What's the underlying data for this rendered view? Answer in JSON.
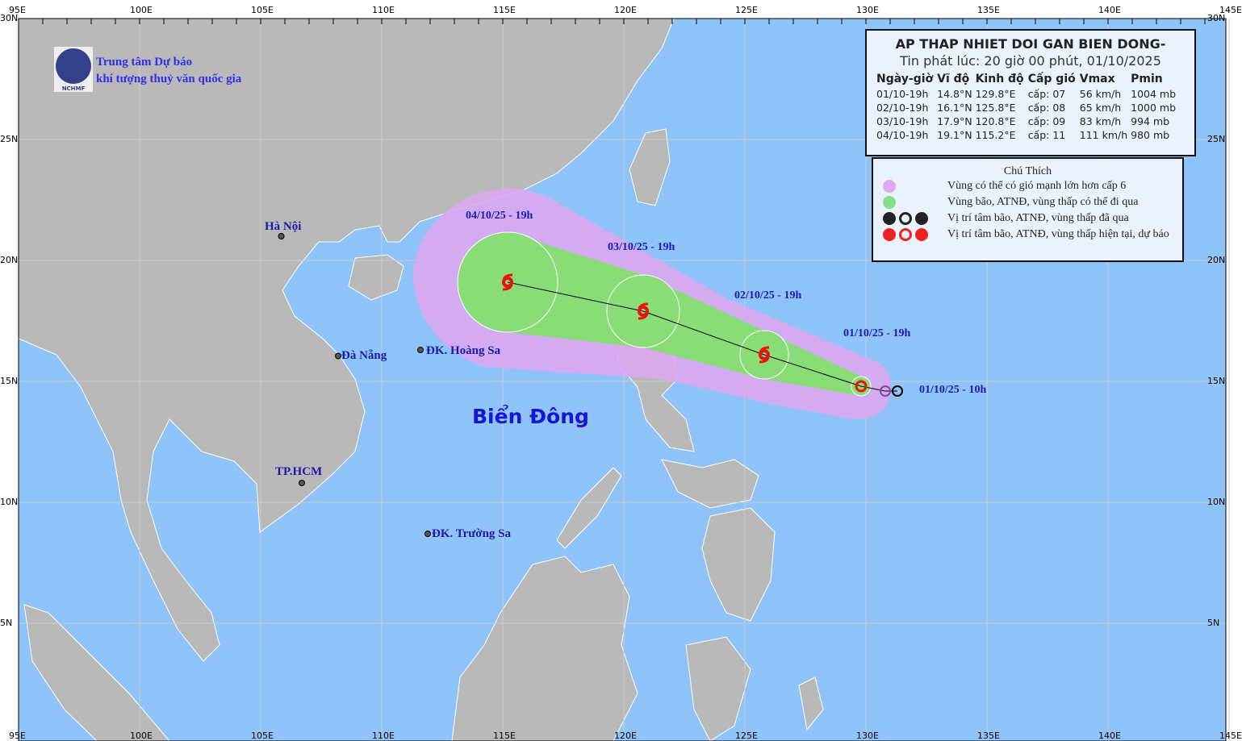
{
  "header": {
    "org_line1": "Trung tâm Dự báo",
    "org_line2": "khí tượng thuỷ văn quốc gia",
    "logo_text": "NCHMF"
  },
  "info": {
    "title": "AP THAP NHIET DOI GAN BIEN DONG-",
    "issued": "Tin phát lúc: 20 giờ 00 phút, 01/10/2025",
    "columns": [
      "Ngày-giờ",
      "Vĩ độ",
      "Kinh độ",
      "Cấp gió",
      "Vmax",
      "Pmin"
    ],
    "rows": [
      [
        "01/10-19h",
        "14.8°N",
        "129.8°E",
        "cấp: 07",
        "56 km/h",
        "1004 mb"
      ],
      [
        "02/10-19h",
        "16.1°N",
        "125.8°E",
        "cấp: 08",
        "65 km/h",
        "1000 mb"
      ],
      [
        "03/10-19h",
        "17.9°N",
        "120.8°E",
        "cấp: 09",
        "83 km/h",
        "994 mb"
      ],
      [
        "04/10-19h",
        "19.1°N",
        "115.2°E",
        "cấp: 11",
        "111 km/h",
        "980 mb"
      ]
    ]
  },
  "legend": {
    "title": "Chú Thích",
    "items": [
      {
        "label": "Vùng có thể có gió mạnh lớn hơn cấp 6",
        "color": "#dca8f0"
      },
      {
        "label": "Vùng bão, ATNĐ, vùng thấp có thể đi qua",
        "color": "#88dd88"
      },
      {
        "label": "Vị trí tâm bão, ATNĐ, vùng thấp đã qua",
        "color": "#222222"
      },
      {
        "label": "Vị trí tâm bão, ATNĐ, vùng thấp hiện tại, dự báo",
        "color": "#ee2222"
      }
    ]
  },
  "axes": {
    "lon_labels": [
      "95E",
      "100E",
      "105E",
      "110E",
      "115E",
      "120E",
      "125E",
      "130E",
      "135E",
      "140E",
      "145E"
    ],
    "lat_labels": [
      "30N",
      "25N",
      "20N",
      "15N",
      "10N",
      "5N"
    ]
  },
  "places": {
    "hanoi": "Hà Nội",
    "danang": "Đà Nẵng",
    "hcm": "TP.HCM",
    "hoangsa": "ĐK. Hoàng Sa",
    "truongsa": "ĐK. Trường Sa",
    "sea": "Biển Đông"
  },
  "track": {
    "past_label": "01/10/25 - 10h",
    "points": [
      {
        "label": "01/10/25 - 19h",
        "lat": 14.8,
        "lon": 129.8
      },
      {
        "label": "02/10/25 - 19h",
        "lat": 16.1,
        "lon": 125.8
      },
      {
        "label": "03/10/25 - 19h",
        "lat": 17.9,
        "lon": 120.8
      },
      {
        "label": "04/10/25 - 19h",
        "lat": 19.1,
        "lon": 115.2
      }
    ],
    "past": [
      {
        "lat": 14.6,
        "lon": 130.8
      },
      {
        "lat": 14.6,
        "lon": 131.3
      }
    ]
  },
  "colors": {
    "sea": "#8fc4fb",
    "land": "#b9b9b9",
    "wind_zone": "#dca8f0",
    "cone": "#88dd77",
    "current": "#ee1111"
  }
}
